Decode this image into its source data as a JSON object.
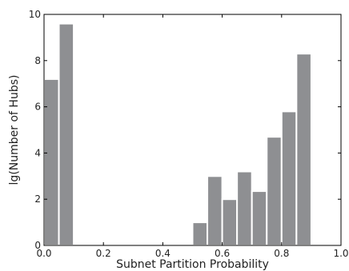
{
  "chart_data": {
    "type": "bar",
    "xlabel": "Subnet Partition Probability",
    "ylabel": "lg(Number of Hubs)",
    "xlim": [
      0.0,
      1.0
    ],
    "ylim": [
      0,
      10
    ],
    "x_ticks": [
      "0.0",
      "0.2",
      "0.4",
      "0.6",
      "0.8",
      "1.0"
    ],
    "y_ticks": [
      "0",
      "2",
      "4",
      "6",
      "8",
      "10"
    ],
    "bin_width": 0.05,
    "bins": [
      {
        "x_start": 0.0,
        "value": 7.2
      },
      {
        "x_start": 0.05,
        "value": 9.6
      },
      {
        "x_start": 0.1,
        "value": 0
      },
      {
        "x_start": 0.15,
        "value": 0
      },
      {
        "x_start": 0.2,
        "value": 0
      },
      {
        "x_start": 0.25,
        "value": 0
      },
      {
        "x_start": 0.3,
        "value": 0
      },
      {
        "x_start": 0.35,
        "value": 0
      },
      {
        "x_start": 0.4,
        "value": 0
      },
      {
        "x_start": 0.45,
        "value": 0
      },
      {
        "x_start": 0.5,
        "value": 1.0
      },
      {
        "x_start": 0.55,
        "value": 3.0
      },
      {
        "x_start": 0.6,
        "value": 2.0
      },
      {
        "x_start": 0.65,
        "value": 3.2
      },
      {
        "x_start": 0.7,
        "value": 2.35
      },
      {
        "x_start": 0.75,
        "value": 4.7
      },
      {
        "x_start": 0.8,
        "value": 5.8
      },
      {
        "x_start": 0.85,
        "value": 8.3
      }
    ],
    "grid": false,
    "bar_color": "#8e8f92"
  }
}
